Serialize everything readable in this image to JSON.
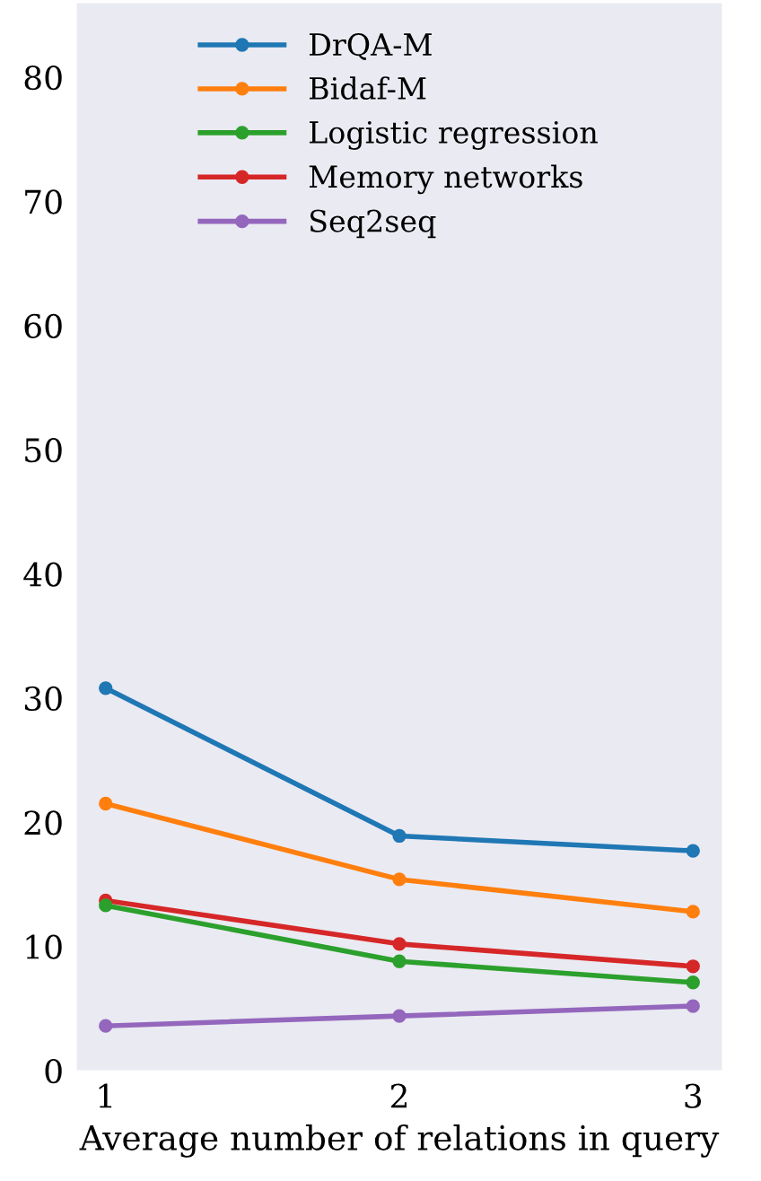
{
  "chart_data": {
    "type": "line",
    "xlabel": "Average number of relations in query",
    "x": [
      1,
      2,
      3
    ],
    "series": [
      {
        "name": "DrQA-M",
        "color": "#1f77b4",
        "values": [
          30.8,
          18.9,
          17.7
        ]
      },
      {
        "name": "Bidaf-M",
        "color": "#ff7f0e",
        "values": [
          21.5,
          15.4,
          12.8
        ]
      },
      {
        "name": "Logistic regression",
        "color": "#2ca02c",
        "values": [
          13.3,
          8.8,
          7.1
        ]
      },
      {
        "name": "Memory networks",
        "color": "#d62728",
        "values": [
          13.7,
          10.2,
          8.4
        ]
      },
      {
        "name": "Seq2seq",
        "color": "#9467bd",
        "values": [
          3.6,
          4.4,
          5.2
        ]
      }
    ],
    "xlim": [
      0.9,
      3.1
    ],
    "xticks": [
      1,
      2,
      3
    ],
    "ylim": [
      0,
      86
    ],
    "yticks": [
      0,
      10,
      20,
      30,
      40,
      50,
      60,
      70,
      80
    ],
    "grid": false,
    "legend": "top",
    "marker": "circle",
    "line_style": "solid"
  }
}
